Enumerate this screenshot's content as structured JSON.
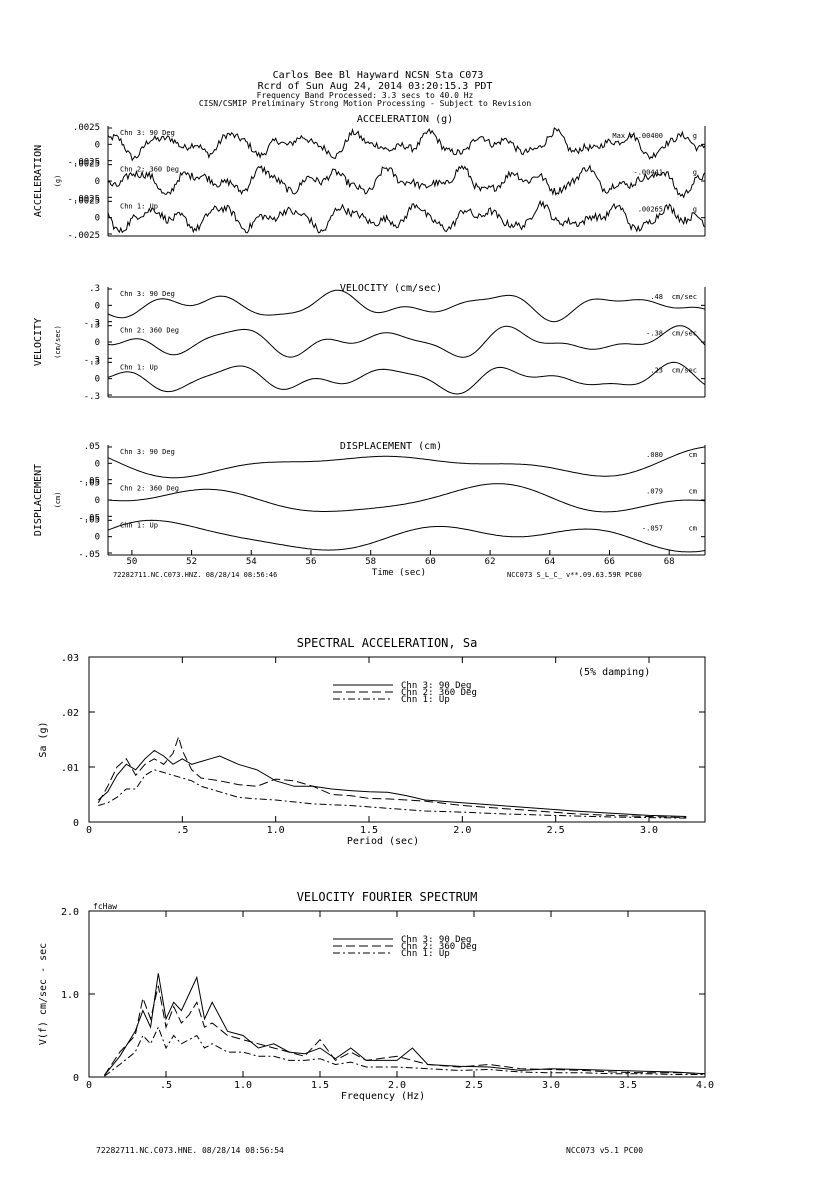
{
  "header": {
    "line1": "Carlos Bee Bl Hayward    NCSN Sta C073",
    "line2": "Rcrd of Sun Aug 24, 2014 03:20:15.3 PDT",
    "line3": "Frequency Band Processed: 3.3 secs to 40.0 Hz",
    "line4": "CISN/CSMIP Preliminary Strong Motion Processing - Subject to Revision"
  },
  "timeseries": [
    {
      "key": "acc",
      "title": "ACCELERATION (g)",
      "side_label": "ACCELERATION",
      "side_units": "(g)",
      "amp_labels": [
        ".0025",
        "0",
        "-.0025"
      ],
      "full_scale": 0.0025,
      "channels": [
        {
          "label": "Chn 3: 90 Deg",
          "peak": "Max = .00400",
          "unit": "g",
          "peak_value": 0.004
        },
        {
          "label": "Chn 2: 360 Deg",
          "peak": "-.00441",
          "unit": "g",
          "peak_value": -0.00441
        },
        {
          "label": "Chn 1: Up",
          "peak": ".00265",
          "unit": "g",
          "peak_value": 0.00265
        }
      ]
    },
    {
      "key": "vel",
      "title": "VELOCITY (cm/sec)",
      "side_label": "VELOCITY",
      "side_units": "(cm/sec)",
      "amp_labels": [
        ".3",
        "0",
        "-.3"
      ],
      "full_scale": 0.3,
      "channels": [
        {
          "label": "Chn 3: 90 Deg",
          ".48": "",
          "peak": ".48",
          "unit": "cm/sec",
          "peak_value": 0.48
        },
        {
          "label": "Chn 2: 360 Deg",
          "peak": "-.38",
          "unit": "cm/sec",
          "peak_value": -0.38
        },
        {
          "label": "Chn 1: Up",
          "peak": ".23",
          "unit": "cm/sec",
          "peak_value": 0.23
        }
      ]
    },
    {
      "key": "disp",
      "title": "DISPLACEMENT (cm)",
      "side_label": "DISPLACEMENT",
      "side_units": "(cm)",
      "amp_labels": [
        ".05",
        "0",
        "-.05"
      ],
      "full_scale": 0.05,
      "channels": [
        {
          "label": "Chn 3: 90 Deg",
          "peak": ".080",
          "unit": "cm",
          "peak_value": 0.08
        },
        {
          "label": "Chn 2: 360 Deg",
          "peak": ".079",
          "unit": "cm",
          "peak_value": 0.079
        },
        {
          "label": "Chn 1: Up",
          "peak": "-.057",
          "unit": "cm",
          "peak_value": -0.057
        }
      ]
    }
  ],
  "time_axis": {
    "label": "Time (sec)",
    "ticks": [
      "50",
      "52",
      "54",
      "56",
      "58",
      "60",
      "62",
      "64",
      "66",
      "68"
    ],
    "range": [
      49.2,
      69.2
    ]
  },
  "footer_top": {
    "left": "72282711.NC.C073.HNZ.  08/28/14 08:56:46",
    "right": "NCC073   S_L_C_   v**.09.63.59R PC00"
  },
  "chart_data": [
    {
      "type": "line",
      "title": "SPECTRAL ACCELERATION, Sa",
      "annotation": "(5% damping)",
      "xlabel": "Period (sec)",
      "ylabel": "Sa (g)",
      "xlim": [
        0,
        3.3
      ],
      "ylim": [
        0,
        0.03
      ],
      "x_tick_labels": [
        "0",
        ".5",
        "1.0",
        "1.5",
        "2.0",
        "2.5",
        "3.0"
      ],
      "x_ticks": [
        0,
        0.5,
        1.0,
        1.5,
        2.0,
        2.5,
        3.0
      ],
      "y_tick_labels": [
        "0",
        ".01",
        ".02",
        ".03"
      ],
      "y_ticks": [
        0,
        0.01,
        0.02,
        0.03
      ],
      "legend": [
        "Chn 3: 90 Deg",
        "Chn 2: 360 Deg",
        "Chn 1: Up"
      ],
      "series": [
        {
          "name": "Chn 3: 90 Deg",
          "dash": "",
          "x": [
            0.05,
            0.1,
            0.15,
            0.2,
            0.25,
            0.3,
            0.35,
            0.4,
            0.45,
            0.5,
            0.55,
            0.6,
            0.65,
            0.7,
            0.8,
            0.9,
            1.0,
            1.1,
            1.2,
            1.3,
            1.4,
            1.5,
            1.6,
            1.7,
            1.8,
            2.0,
            2.2,
            2.4,
            2.6,
            2.8,
            3.0,
            3.2
          ],
          "values": [
            0.004,
            0.0055,
            0.0085,
            0.0105,
            0.0095,
            0.0115,
            0.013,
            0.012,
            0.0105,
            0.0115,
            0.0105,
            0.011,
            0.0115,
            0.012,
            0.0105,
            0.0095,
            0.0075,
            0.0065,
            0.0065,
            0.006,
            0.0057,
            0.0055,
            0.0054,
            0.0048,
            0.004,
            0.0035,
            0.003,
            0.0025,
            0.002,
            0.0016,
            0.0012,
            0.001
          ]
        },
        {
          "name": "Chn 2: 360 Deg",
          "dash": "9,4",
          "x": [
            0.05,
            0.1,
            0.15,
            0.2,
            0.25,
            0.3,
            0.35,
            0.4,
            0.45,
            0.48,
            0.5,
            0.55,
            0.6,
            0.7,
            0.8,
            0.9,
            1.0,
            1.1,
            1.2,
            1.3,
            1.4,
            1.5,
            1.6,
            1.7,
            1.8,
            2.0,
            2.2,
            2.4,
            2.6,
            2.8,
            3.0,
            3.2
          ],
          "values": [
            0.0035,
            0.0065,
            0.01,
            0.0115,
            0.0085,
            0.0105,
            0.0115,
            0.0105,
            0.0125,
            0.0155,
            0.013,
            0.0095,
            0.008,
            0.0075,
            0.0068,
            0.0065,
            0.0078,
            0.0075,
            0.0065,
            0.005,
            0.0048,
            0.0043,
            0.0042,
            0.004,
            0.0038,
            0.003,
            0.0025,
            0.002,
            0.0015,
            0.0012,
            0.001,
            0.0008
          ]
        },
        {
          "name": "Chn 1: Up",
          "dash": "7,3,2,3",
          "x": [
            0.05,
            0.1,
            0.15,
            0.2,
            0.25,
            0.3,
            0.35,
            0.4,
            0.45,
            0.5,
            0.55,
            0.6,
            0.7,
            0.8,
            0.9,
            1.0,
            1.2,
            1.4,
            1.6,
            1.8,
            2.0,
            2.2,
            2.4,
            2.6,
            2.8,
            3.0,
            3.2
          ],
          "values": [
            0.003,
            0.0035,
            0.0045,
            0.006,
            0.006,
            0.0085,
            0.0095,
            0.009,
            0.0085,
            0.008,
            0.0075,
            0.0065,
            0.0055,
            0.0045,
            0.0042,
            0.004,
            0.0033,
            0.003,
            0.0025,
            0.002,
            0.0018,
            0.0015,
            0.0013,
            0.0011,
            0.0009,
            0.0008,
            0.0007
          ]
        }
      ]
    },
    {
      "type": "line",
      "title": "VELOCITY FOURIER SPECTRUM",
      "corner_label": "fcHaw",
      "xlabel": "Frequency (Hz)",
      "ylabel": "V(f)   cm/sec - sec",
      "xlim": [
        0,
        4.0
      ],
      "ylim": [
        0,
        2.0
      ],
      "x_tick_labels": [
        "0",
        ".5",
        "1.0",
        "1.5",
        "2.0",
        "2.5",
        "3.0",
        "3.5",
        "4.0"
      ],
      "x_ticks": [
        0,
        0.5,
        1.0,
        1.5,
        2.0,
        2.5,
        3.0,
        3.5,
        4.0
      ],
      "y_tick_labels": [
        "0",
        "1.0",
        "2.0"
      ],
      "y_ticks": [
        0,
        1.0,
        2.0
      ],
      "legend": [
        "Chn 3: 90 Deg",
        "Chn 2: 360 Deg",
        "Chn 1: Up"
      ],
      "series": [
        {
          "name": "Chn 3: 90 Deg",
          "dash": "",
          "x": [
            0.1,
            0.2,
            0.3,
            0.35,
            0.4,
            0.45,
            0.5,
            0.55,
            0.6,
            0.65,
            0.7,
            0.75,
            0.8,
            0.9,
            1.0,
            1.1,
            1.2,
            1.3,
            1.4,
            1.5,
            1.6,
            1.7,
            1.8,
            2.0,
            2.1,
            2.2,
            2.4,
            2.6,
            2.8,
            3.0,
            3.2,
            3.4,
            3.6,
            3.8,
            4.0
          ],
          "values": [
            0.02,
            0.25,
            0.55,
            0.8,
            0.6,
            1.25,
            0.7,
            0.9,
            0.8,
            1.0,
            1.2,
            0.7,
            0.9,
            0.55,
            0.5,
            0.35,
            0.4,
            0.3,
            0.28,
            0.35,
            0.22,
            0.35,
            0.2,
            0.2,
            0.35,
            0.15,
            0.13,
            0.12,
            0.08,
            0.1,
            0.09,
            0.08,
            0.07,
            0.06,
            0.04
          ]
        },
        {
          "name": "Chn 2: 360 Deg",
          "dash": "9,4",
          "x": [
            0.1,
            0.2,
            0.3,
            0.35,
            0.4,
            0.45,
            0.5,
            0.55,
            0.6,
            0.65,
            0.7,
            0.75,
            0.8,
            0.9,
            1.0,
            1.1,
            1.2,
            1.3,
            1.4,
            1.5,
            1.6,
            1.7,
            1.8,
            2.0,
            2.2,
            2.4,
            2.6,
            2.8,
            3.0,
            3.2,
            3.4,
            3.6,
            3.8,
            4.0
          ],
          "values": [
            0.02,
            0.3,
            0.5,
            0.95,
            0.7,
            1.1,
            0.6,
            0.85,
            0.65,
            0.75,
            0.9,
            0.6,
            0.65,
            0.5,
            0.45,
            0.4,
            0.35,
            0.3,
            0.25,
            0.45,
            0.2,
            0.3,
            0.2,
            0.25,
            0.15,
            0.12,
            0.15,
            0.1,
            0.09,
            0.08,
            0.06,
            0.05,
            0.05,
            0.04
          ]
        },
        {
          "name": "Chn 1: Up",
          "dash": "7,3,2,3",
          "x": [
            0.1,
            0.2,
            0.3,
            0.35,
            0.4,
            0.45,
            0.5,
            0.55,
            0.6,
            0.65,
            0.7,
            0.75,
            0.8,
            0.9,
            1.0,
            1.1,
            1.2,
            1.3,
            1.4,
            1.5,
            1.6,
            1.7,
            1.8,
            2.0,
            2.2,
            2.4,
            2.6,
            2.8,
            3.0,
            3.2,
            3.4,
            3.6,
            3.8,
            4.0
          ],
          "values": [
            0.01,
            0.15,
            0.3,
            0.5,
            0.4,
            0.6,
            0.35,
            0.5,
            0.4,
            0.45,
            0.5,
            0.35,
            0.4,
            0.3,
            0.3,
            0.25,
            0.25,
            0.2,
            0.2,
            0.22,
            0.15,
            0.18,
            0.12,
            0.12,
            0.1,
            0.08,
            0.09,
            0.06,
            0.05,
            0.05,
            0.04,
            0.04,
            0.03,
            0.03
          ]
        }
      ]
    }
  ],
  "footer_bottom": {
    "left": "72282711.NC.C073.HNE.  08/28/14 08:56:54",
    "right": "NCC073    v5.1  PC00"
  }
}
